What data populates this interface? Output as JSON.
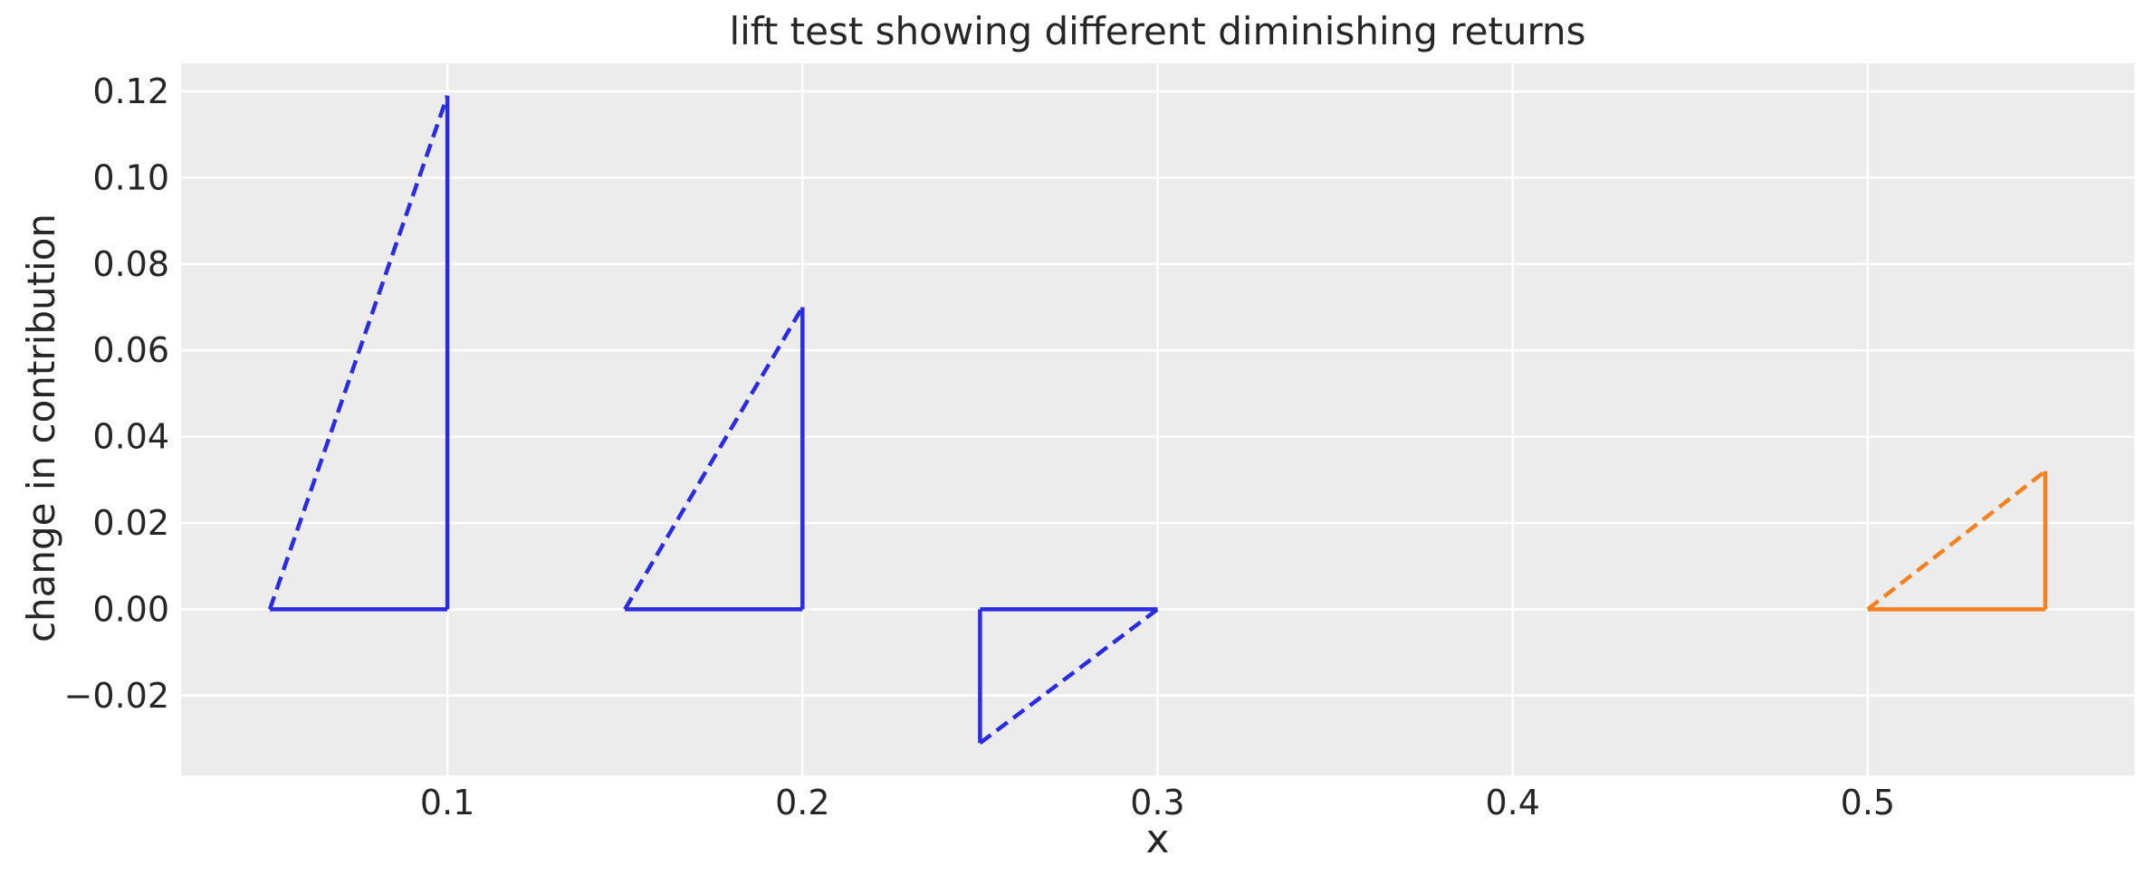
{
  "chart_data": {
    "type": "line",
    "title": "lift test showing different diminishing returns",
    "xlabel": "x",
    "ylabel": "change in contribution",
    "xlim": [
      0.025,
      0.575
    ],
    "ylim": [
      -0.0385,
      0.1265
    ],
    "xticks": [
      0.1,
      0.2,
      0.3,
      0.4,
      0.5
    ],
    "xtick_labels": [
      "0.1",
      "0.2",
      "0.3",
      "0.4",
      "0.5"
    ],
    "yticks": [
      0.12,
      0.1,
      0.08,
      0.06,
      0.04,
      0.02,
      0.0,
      -0.02
    ],
    "ytick_labels": [
      "0.12",
      "0.10",
      "0.08",
      "0.06",
      "0.04",
      "0.02",
      "0.00",
      "−0.02"
    ],
    "grid": true,
    "legend": false,
    "styles": {
      "plot_background": "#ececec",
      "gridline_color": "#ffffff",
      "text_color": "#262626",
      "blue": "#2b2be0",
      "orange": "#f5801e"
    },
    "lift_tests": [
      {
        "name": "lift test 1",
        "color": "#2b2be0",
        "x_start": 0.05,
        "x_end": 0.1,
        "delta_y": 0.119,
        "segments": [
          {
            "kind": "hypotenuse",
            "style": "dashed",
            "points": [
              [
                0.05,
                0
              ],
              [
                0.1,
                0.119
              ]
            ]
          },
          {
            "kind": "base",
            "style": "solid",
            "points": [
              [
                0.05,
                0
              ],
              [
                0.1,
                0
              ]
            ]
          },
          {
            "kind": "vertical",
            "style": "solid",
            "points": [
              [
                0.1,
                0
              ],
              [
                0.1,
                0.119
              ]
            ]
          }
        ]
      },
      {
        "name": "lift test 2",
        "color": "#2b2be0",
        "x_start": 0.15,
        "x_end": 0.2,
        "delta_y": 0.07,
        "segments": [
          {
            "kind": "hypotenuse",
            "style": "dashed",
            "points": [
              [
                0.15,
                0
              ],
              [
                0.2,
                0.07
              ]
            ]
          },
          {
            "kind": "base",
            "style": "solid",
            "points": [
              [
                0.15,
                0
              ],
              [
                0.2,
                0
              ]
            ]
          },
          {
            "kind": "vertical",
            "style": "solid",
            "points": [
              [
                0.2,
                0
              ],
              [
                0.2,
                0.07
              ]
            ]
          }
        ]
      },
      {
        "name": "lift test 3",
        "color": "#2b2be0",
        "x_start": 0.25,
        "x_end": 0.3,
        "delta_y": -0.031,
        "segments": [
          {
            "kind": "hypotenuse",
            "style": "dashed",
            "points": [
              [
                0.25,
                -0.031
              ],
              [
                0.3,
                0
              ]
            ]
          },
          {
            "kind": "base",
            "style": "solid",
            "points": [
              [
                0.25,
                0
              ],
              [
                0.3,
                0
              ]
            ]
          },
          {
            "kind": "vertical",
            "style": "solid",
            "points": [
              [
                0.25,
                0
              ],
              [
                0.25,
                -0.031
              ]
            ]
          }
        ]
      },
      {
        "name": "lift test 4",
        "color": "#f5801e",
        "x_start": 0.5,
        "x_end": 0.55,
        "delta_y": 0.032,
        "segments": [
          {
            "kind": "hypotenuse",
            "style": "dashed",
            "points": [
              [
                0.5,
                0
              ],
              [
                0.55,
                0.032
              ]
            ]
          },
          {
            "kind": "base",
            "style": "solid",
            "points": [
              [
                0.5,
                0
              ],
              [
                0.55,
                0
              ]
            ]
          },
          {
            "kind": "vertical",
            "style": "solid",
            "points": [
              [
                0.55,
                0
              ],
              [
                0.55,
                0.032
              ]
            ]
          }
        ]
      }
    ]
  }
}
